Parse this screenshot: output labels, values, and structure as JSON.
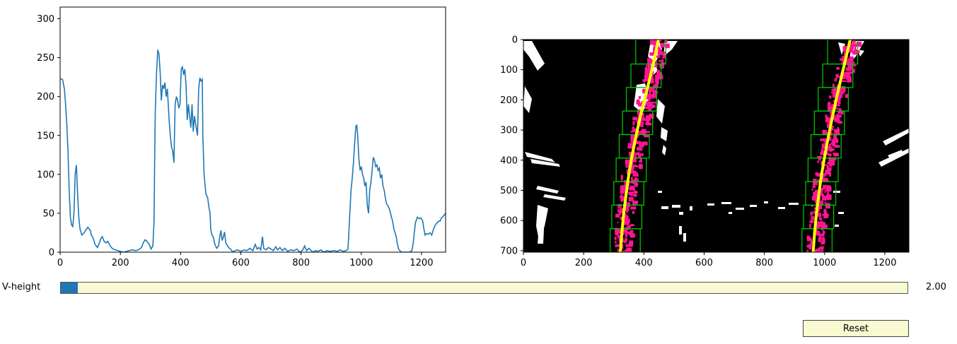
{
  "chart_data": [
    {
      "type": "line",
      "title": "",
      "xlabel": "",
      "ylabel": "",
      "xlim": [
        0,
        1280
      ],
      "ylim": [
        0,
        315
      ],
      "xticks": [
        "0",
        "200",
        "400",
        "600",
        "800",
        "1000",
        "1200"
      ],
      "yticks": [
        "0",
        "50",
        "100",
        "150",
        "200",
        "250",
        "300"
      ],
      "color": "#1f77b4",
      "series": [
        {
          "name": "histogram",
          "points": [
            [
              0,
              223
            ],
            [
              8,
              222
            ],
            [
              14,
              210
            ],
            [
              18,
              190
            ],
            [
              22,
              165
            ],
            [
              26,
              130
            ],
            [
              30,
              80
            ],
            [
              34,
              45
            ],
            [
              38,
              35
            ],
            [
              42,
              33
            ],
            [
              46,
              50
            ],
            [
              50,
              100
            ],
            [
              54,
              112
            ],
            [
              58,
              75
            ],
            [
              62,
              45
            ],
            [
              66,
              30
            ],
            [
              72,
              22
            ],
            [
              80,
              25
            ],
            [
              88,
              30
            ],
            [
              92,
              32
            ],
            [
              96,
              30
            ],
            [
              100,
              28
            ],
            [
              104,
              22
            ],
            [
              110,
              18
            ],
            [
              116,
              10
            ],
            [
              124,
              6
            ],
            [
              130,
              12
            ],
            [
              136,
              18
            ],
            [
              140,
              20
            ],
            [
              146,
              14
            ],
            [
              152,
              12
            ],
            [
              158,
              14
            ],
            [
              164,
              10
            ],
            [
              170,
              6
            ],
            [
              176,
              4
            ],
            [
              184,
              3
            ],
            [
              192,
              2
            ],
            [
              200,
              1
            ],
            [
              210,
              0
            ],
            [
              220,
              1
            ],
            [
              230,
              2
            ],
            [
              240,
              3
            ],
            [
              250,
              2
            ],
            [
              260,
              3
            ],
            [
              270,
              6
            ],
            [
              276,
              12
            ],
            [
              282,
              16
            ],
            [
              288,
              14
            ],
            [
              296,
              10
            ],
            [
              302,
              4
            ],
            [
              308,
              8
            ],
            [
              312,
              40
            ],
            [
              314,
              120
            ],
            [
              316,
              180
            ],
            [
              320,
              230
            ],
            [
              324,
              260
            ],
            [
              328,
              255
            ],
            [
              332,
              232
            ],
            [
              336,
              195
            ],
            [
              340,
              215
            ],
            [
              344,
              210
            ],
            [
              348,
              218
            ],
            [
              352,
              200
            ],
            [
              356,
              210
            ],
            [
              362,
              170
            ],
            [
              366,
              150
            ],
            [
              370,
              135
            ],
            [
              374,
              130
            ],
            [
              378,
              115
            ],
            [
              382,
              190
            ],
            [
              386,
              200
            ],
            [
              390,
              195
            ],
            [
              394,
              185
            ],
            [
              398,
              190
            ],
            [
              402,
              235
            ],
            [
              406,
              238
            ],
            [
              410,
              228
            ],
            [
              414,
              235
            ],
            [
              418,
              215
            ],
            [
              422,
              170
            ],
            [
              426,
              190
            ],
            [
              430,
              175
            ],
            [
              434,
              160
            ],
            [
              438,
              190
            ],
            [
              442,
              155
            ],
            [
              446,
              175
            ],
            [
              450,
              165
            ],
            [
              456,
              150
            ],
            [
              460,
              210
            ],
            [
              464,
              224
            ],
            [
              468,
              220
            ],
            [
              472,
              222
            ],
            [
              474,
              150
            ],
            [
              478,
              100
            ],
            [
              484,
              75
            ],
            [
              490,
              70
            ],
            [
              494,
              58
            ],
            [
              498,
              50
            ],
            [
              500,
              30
            ],
            [
              504,
              22
            ],
            [
              508,
              20
            ],
            [
              514,
              10
            ],
            [
              520,
              5
            ],
            [
              526,
              8
            ],
            [
              530,
              20
            ],
            [
              534,
              28
            ],
            [
              538,
              15
            ],
            [
              542,
              20
            ],
            [
              546,
              26
            ],
            [
              550,
              12
            ],
            [
              556,
              8
            ],
            [
              562,
              5
            ],
            [
              566,
              4
            ],
            [
              574,
              0
            ],
            [
              580,
              2
            ],
            [
              590,
              3
            ],
            [
              600,
              1
            ],
            [
              610,
              3
            ],
            [
              620,
              2
            ],
            [
              630,
              5
            ],
            [
              640,
              2
            ],
            [
              648,
              10
            ],
            [
              654,
              4
            ],
            [
              660,
              6
            ],
            [
              666,
              3
            ],
            [
              672,
              20
            ],
            [
              676,
              5
            ],
            [
              684,
              3
            ],
            [
              692,
              6
            ],
            [
              700,
              4
            ],
            [
              708,
              2
            ],
            [
              716,
              7
            ],
            [
              722,
              3
            ],
            [
              730,
              6
            ],
            [
              738,
              2
            ],
            [
              746,
              5
            ],
            [
              756,
              1
            ],
            [
              766,
              3
            ],
            [
              776,
              2
            ],
            [
              786,
              4
            ],
            [
              796,
              0
            ],
            [
              806,
              3
            ],
            [
              812,
              8
            ],
            [
              818,
              2
            ],
            [
              826,
              5
            ],
            [
              834,
              2
            ],
            [
              840,
              0
            ],
            [
              848,
              2
            ],
            [
              856,
              1
            ],
            [
              866,
              3
            ],
            [
              876,
              0
            ],
            [
              886,
              2
            ],
            [
              896,
              1
            ],
            [
              910,
              2
            ],
            [
              920,
              1
            ],
            [
              930,
              3
            ],
            [
              940,
              1
            ],
            [
              950,
              2
            ],
            [
              956,
              4
            ],
            [
              962,
              50
            ],
            [
              966,
              80
            ],
            [
              970,
              95
            ],
            [
              974,
              115
            ],
            [
              978,
              140
            ],
            [
              982,
              162
            ],
            [
              985,
              163
            ],
            [
              988,
              150
            ],
            [
              992,
              120
            ],
            [
              996,
              105
            ],
            [
              1000,
              110
            ],
            [
              1004,
              100
            ],
            [
              1008,
              95
            ],
            [
              1012,
              85
            ],
            [
              1016,
              90
            ],
            [
              1020,
              60
            ],
            [
              1024,
              50
            ],
            [
              1028,
              80
            ],
            [
              1032,
              90
            ],
            [
              1036,
              105
            ],
            [
              1040,
              122
            ],
            [
              1044,
              118
            ],
            [
              1048,
              110
            ],
            [
              1052,
              112
            ],
            [
              1056,
              105
            ],
            [
              1060,
              108
            ],
            [
              1064,
              95
            ],
            [
              1068,
              100
            ],
            [
              1072,
              85
            ],
            [
              1076,
              80
            ],
            [
              1080,
              70
            ],
            [
              1084,
              62
            ],
            [
              1088,
              60
            ],
            [
              1094,
              55
            ],
            [
              1100,
              45
            ],
            [
              1104,
              40
            ],
            [
              1108,
              30
            ],
            [
              1112,
              25
            ],
            [
              1116,
              20
            ],
            [
              1120,
              10
            ],
            [
              1124,
              4
            ],
            [
              1128,
              2
            ],
            [
              1132,
              0
            ],
            [
              1140,
              0
            ],
            [
              1150,
              0
            ],
            [
              1160,
              0
            ],
            [
              1168,
              2
            ],
            [
              1172,
              10
            ],
            [
              1176,
              25
            ],
            [
              1180,
              38
            ],
            [
              1186,
              45
            ],
            [
              1192,
              43
            ],
            [
              1198,
              44
            ],
            [
              1204,
              40
            ],
            [
              1208,
              30
            ],
            [
              1212,
              22
            ],
            [
              1216,
              24
            ],
            [
              1222,
              23
            ],
            [
              1228,
              25
            ],
            [
              1234,
              22
            ],
            [
              1240,
              30
            ],
            [
              1246,
              35
            ],
            [
              1252,
              38
            ],
            [
              1258,
              40
            ],
            [
              1262,
              40
            ],
            [
              1266,
              44
            ],
            [
              1272,
              46
            ],
            [
              1280,
              50
            ]
          ]
        }
      ]
    },
    {
      "type": "image",
      "title": "",
      "xlim": [
        0,
        1280
      ],
      "ylim": [
        705,
        0
      ],
      "xticks": [
        "0",
        "200",
        "400",
        "600",
        "800",
        "1000",
        "1200"
      ],
      "yticks": [
        "0",
        "100",
        "200",
        "300",
        "400",
        "500",
        "600",
        "700"
      ],
      "background": "#000000",
      "lane_pixel_color": "#ff1493",
      "window_color": "#00c000",
      "fit_color": "#ffff00",
      "left_lane_fit_x": [
        448,
        435,
        420,
        404,
        388,
        374,
        361,
        350,
        341,
        333,
        327,
        322
      ],
      "right_lane_fit_x": [
        1085,
        1070,
        1055,
        1040,
        1026,
        1013,
        1001,
        990,
        981,
        973,
        967,
        962
      ],
      "fit_y": [
        0,
        64,
        128,
        192,
        256,
        320,
        384,
        448,
        512,
        576,
        640,
        705
      ],
      "left_windows": [
        {
          "x": [
            288,
            388
          ],
          "y": [
            627,
            705
          ]
        },
        {
          "x": [
            293,
            393
          ],
          "y": [
            549,
            627
          ]
        },
        {
          "x": [
            300,
            400
          ],
          "y": [
            471,
            549
          ]
        },
        {
          "x": [
            308,
            408
          ],
          "y": [
            393,
            471
          ]
        },
        {
          "x": [
            318,
            418
          ],
          "y": [
            315,
            393
          ]
        },
        {
          "x": [
            329,
            429
          ],
          "y": [
            237,
            315
          ]
        },
        {
          "x": [
            342,
            442
          ],
          "y": [
            159,
            237
          ]
        },
        {
          "x": [
            357,
            457
          ],
          "y": [
            81,
            159
          ]
        },
        {
          "x": [
            373,
            473
          ],
          "y": [
            0,
            81
          ]
        }
      ],
      "right_windows": [
        {
          "x": [
            925,
            1025
          ],
          "y": [
            627,
            705
          ]
        },
        {
          "x": [
            930,
            1030
          ],
          "y": [
            549,
            627
          ]
        },
        {
          "x": [
            937,
            1037
          ],
          "y": [
            471,
            549
          ]
        },
        {
          "x": [
            945,
            1045
          ],
          "y": [
            393,
            471
          ]
        },
        {
          "x": [
            955,
            1055
          ],
          "y": [
            315,
            393
          ]
        },
        {
          "x": [
            966,
            1066
          ],
          "y": [
            237,
            315
          ]
        },
        {
          "x": [
            979,
            1079
          ],
          "y": [
            159,
            237
          ]
        },
        {
          "x": [
            994,
            1094
          ],
          "y": [
            81,
            159
          ]
        },
        {
          "x": [
            1010,
            1110
          ],
          "y": [
            0,
            81
          ]
        }
      ]
    }
  ],
  "slider": {
    "label": "V-height",
    "value_text": "2.00",
    "fill_fraction": 0.02
  },
  "reset_button": {
    "label": "Reset"
  }
}
